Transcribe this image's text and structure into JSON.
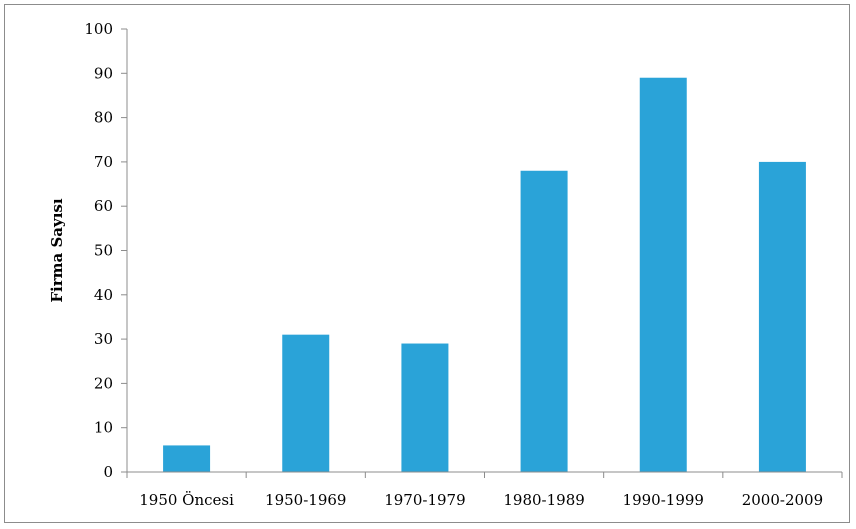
{
  "chart_data": {
    "type": "bar",
    "title": "",
    "xlabel": "",
    "ylabel": "Firma Sayısı",
    "categories": [
      "1950 Öncesi",
      "1950-1969",
      "1970-1979",
      "1980-1989",
      "1990-1999",
      "2000-2009"
    ],
    "values": [
      6,
      31,
      29,
      68,
      89,
      70
    ],
    "ylim": [
      0,
      100
    ],
    "yticks": [
      "0",
      "10",
      "20",
      "30",
      "40",
      "50",
      "60",
      "70",
      "80",
      "90",
      "100"
    ],
    "grid": false,
    "legend": "none",
    "bar_color": "#2aa3d8",
    "axis_color": "#8c8c8c"
  }
}
